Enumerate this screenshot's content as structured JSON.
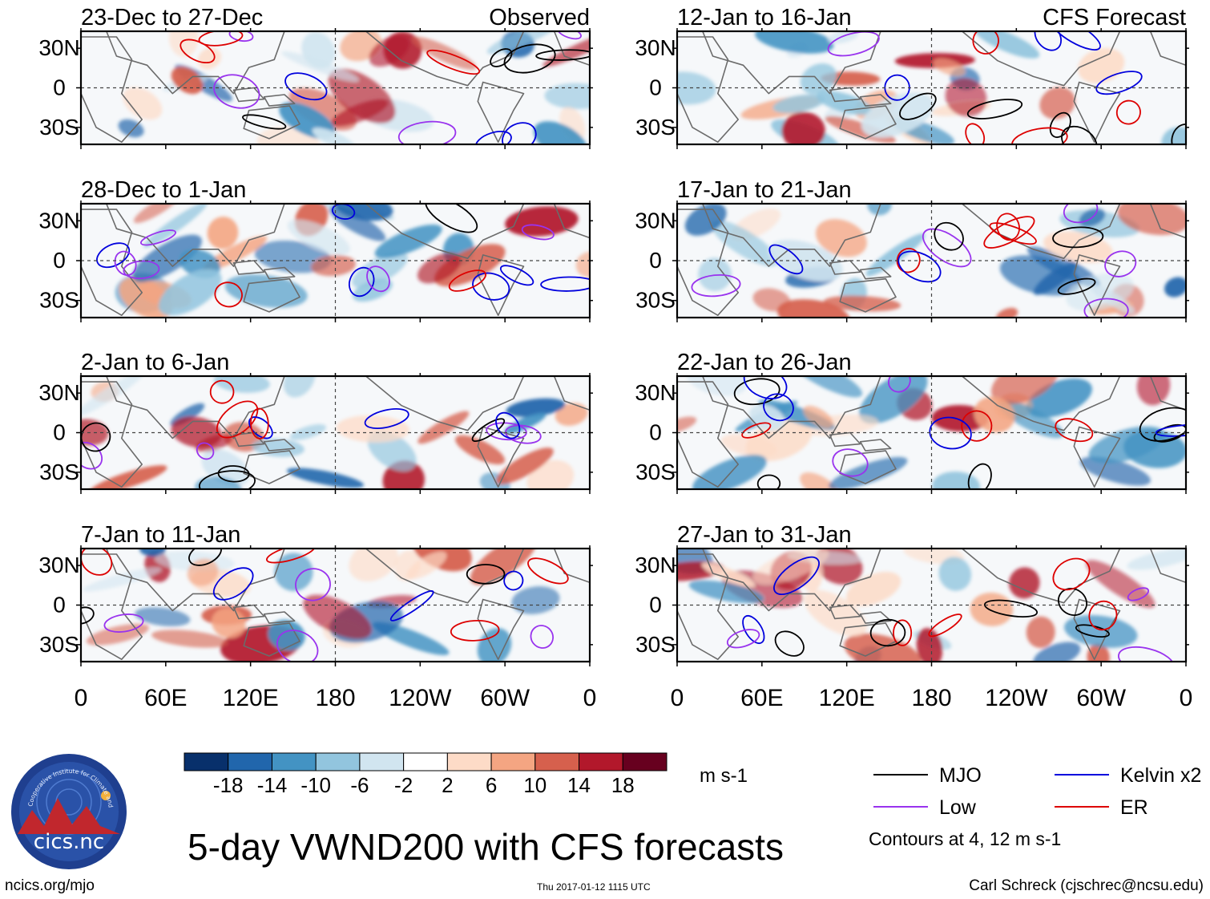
{
  "title": "5-day VWND200 with CFS forecasts",
  "labels": {
    "observed": "Observed",
    "forecast": "CFS Forecast"
  },
  "panels": [
    {
      "period": "23-Dec to 27-Dec",
      "column": "left",
      "row": 0
    },
    {
      "period": "28-Dec to 1-Jan",
      "column": "left",
      "row": 1
    },
    {
      "period": "2-Jan to 6-Jan",
      "column": "left",
      "row": 2
    },
    {
      "period": "7-Jan to 11-Jan",
      "column": "left",
      "row": 3
    },
    {
      "period": "12-Jan to 16-Jan",
      "column": "right",
      "row": 0
    },
    {
      "period": "17-Jan to 21-Jan",
      "column": "right",
      "row": 1
    },
    {
      "period": "22-Jan to 26-Jan",
      "column": "right",
      "row": 2
    },
    {
      "period": "27-Jan to 31-Jan",
      "column": "right",
      "row": 3
    }
  ],
  "lat_ticks": [
    "30N",
    "0",
    "30S"
  ],
  "lon_ticks": [
    "0",
    "60E",
    "120E",
    "180",
    "120W",
    "60W",
    "0"
  ],
  "colorbar": {
    "units": "m s-1",
    "tick_labels": [
      "-18",
      "-14",
      "-10",
      "-6",
      "-2",
      "2",
      "6",
      "10",
      "14",
      "18"
    ],
    "colors": [
      "#08306b",
      "#2166ac",
      "#4393c3",
      "#92c5de",
      "#d1e5f0",
      "#ffffff",
      "#fddbc7",
      "#f4a582",
      "#d6604d",
      "#b2182b",
      "#67001f"
    ]
  },
  "legend": {
    "items": [
      {
        "label": "MJO",
        "color": "#000000"
      },
      {
        "label": "Kelvin x2",
        "color": "#0000dd"
      },
      {
        "label": "Low",
        "color": "#9933ee"
      },
      {
        "label": "ER",
        "color": "#dd0000"
      }
    ],
    "note": "Contours at 4, 12 m s-1"
  },
  "logo": {
    "text": "cics.nc",
    "ring_text": "Cooperative Institute for Climate and Satellites"
  },
  "footer": {
    "website": "ncics.org/mjo",
    "timestamp": "Thu 2017-01-12 1115 UTC",
    "author": "Carl Schreck (cjschrec@ncsu.edu)"
  }
}
